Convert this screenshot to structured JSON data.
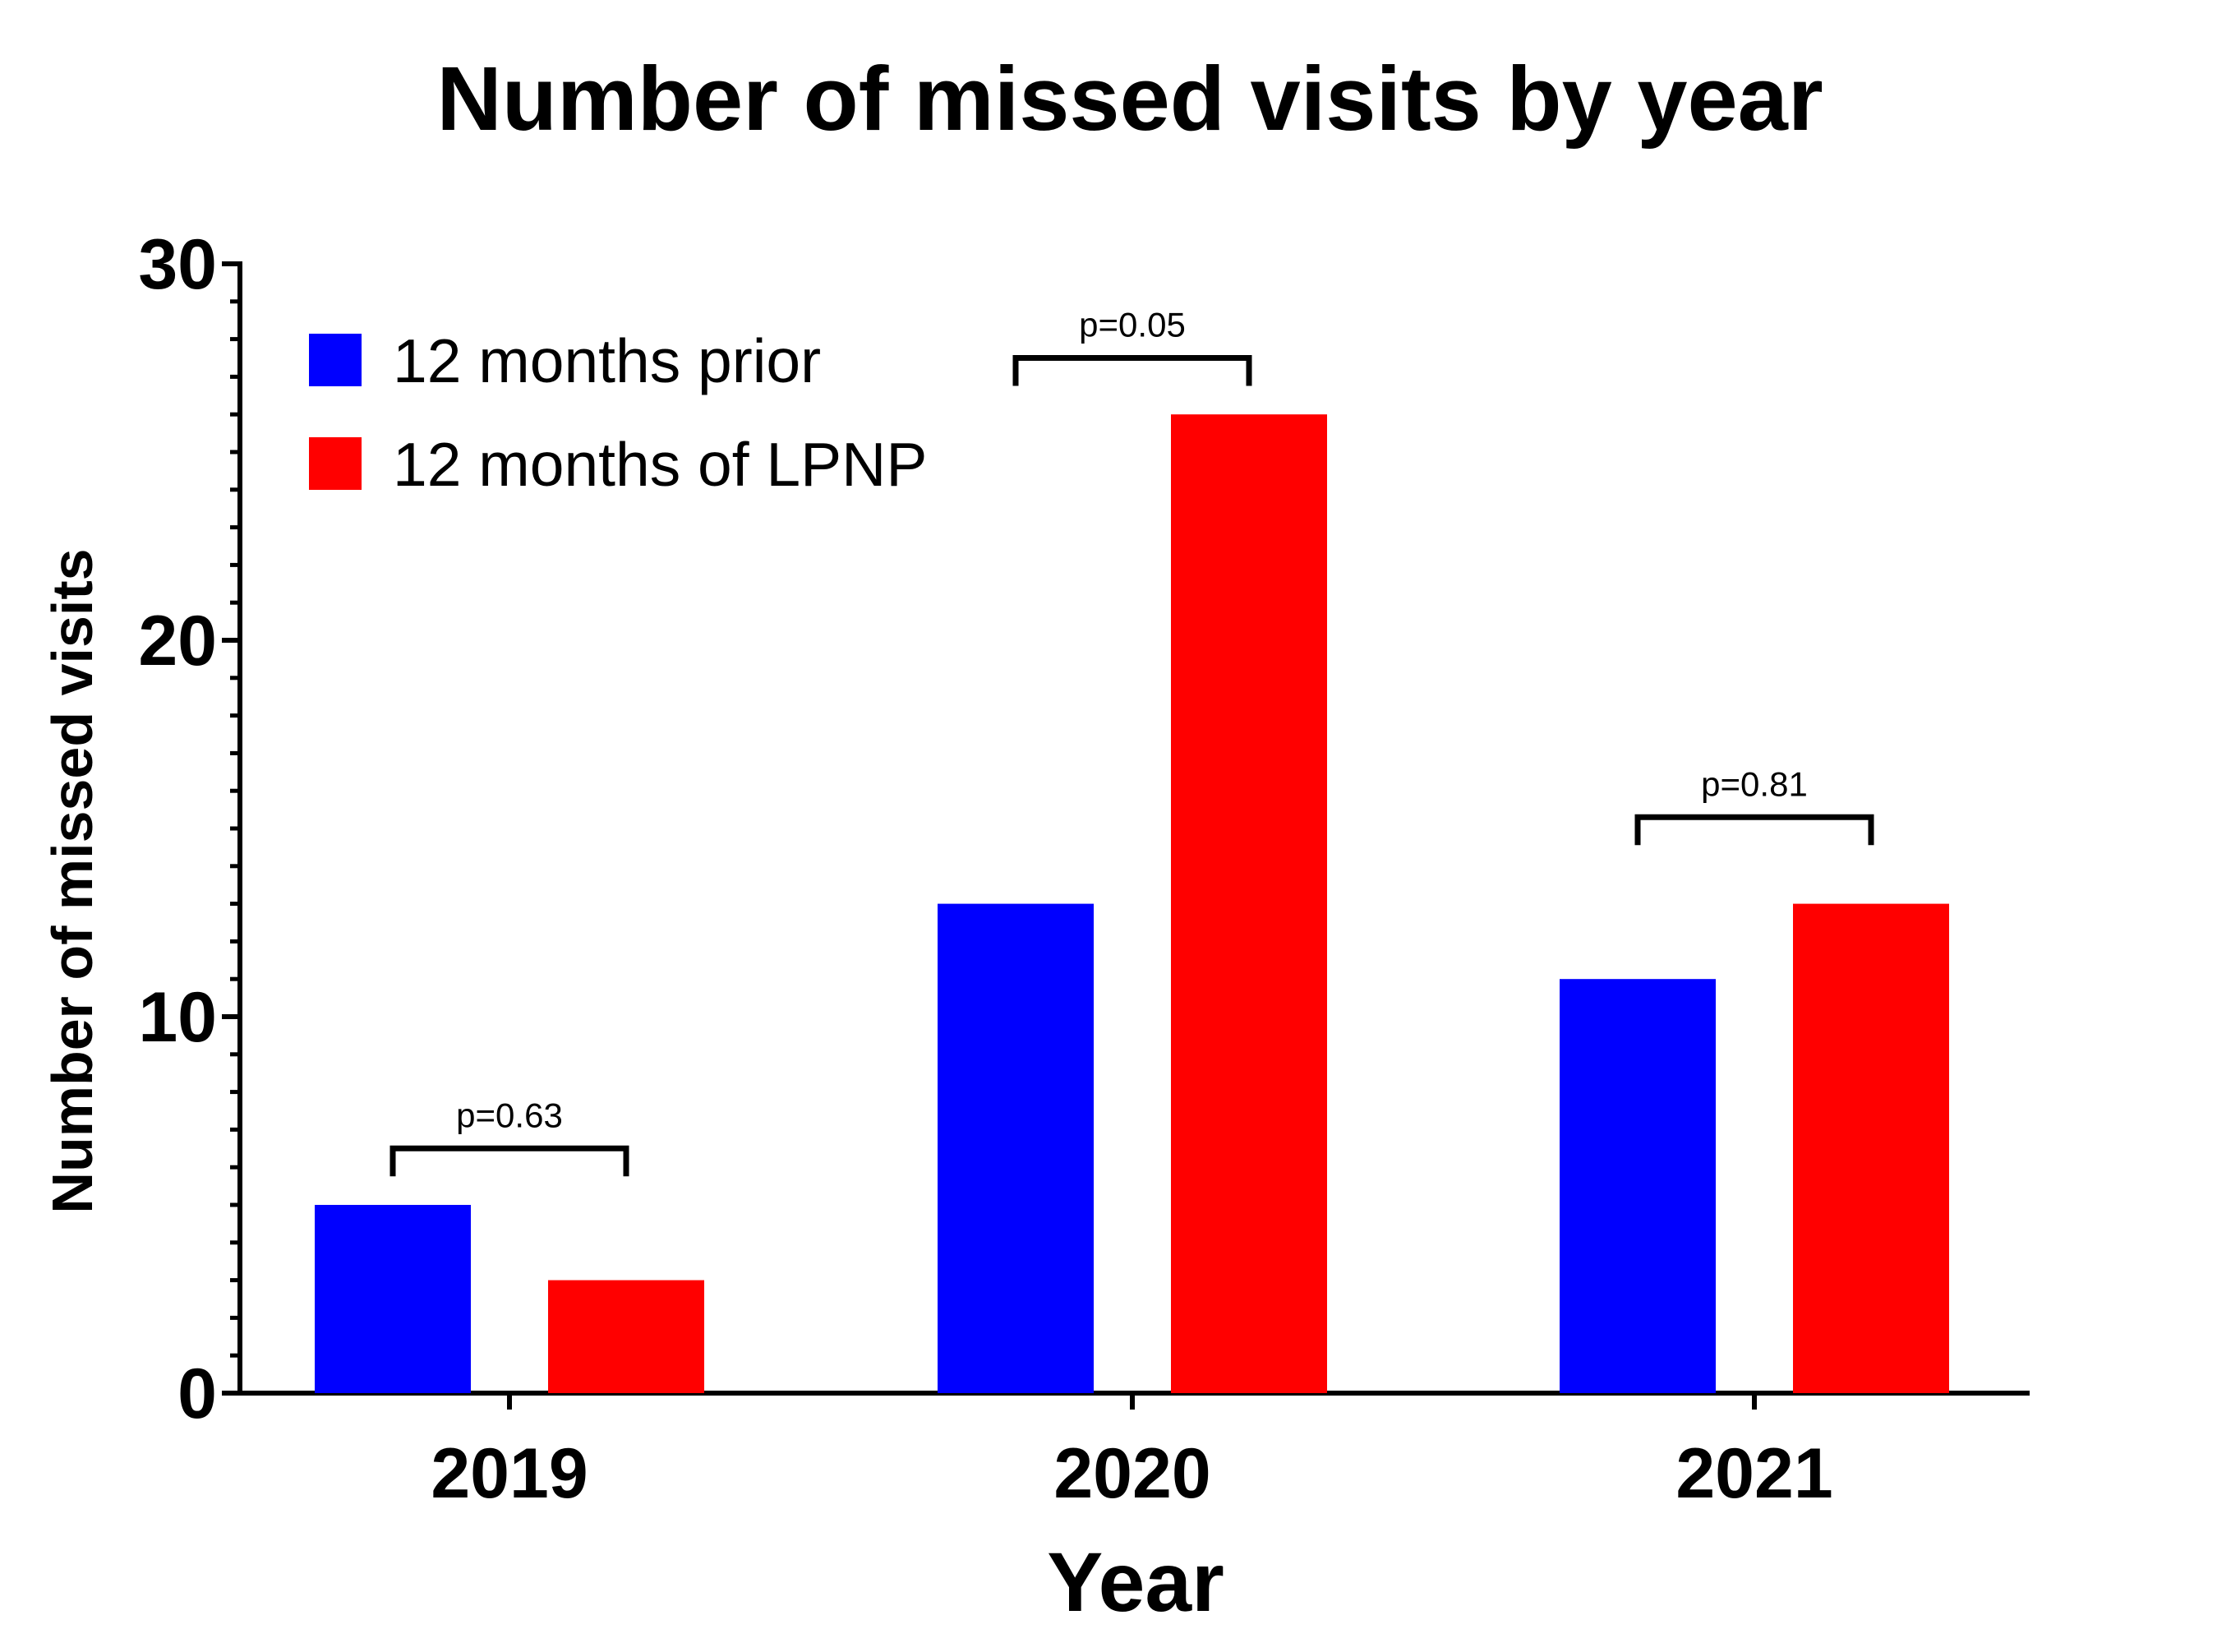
{
  "chart_data": {
    "type": "bar",
    "title": "Number of missed visits by year",
    "xlabel": "Year",
    "ylabel": "Number of missed visits",
    "categories": [
      "2019",
      "2020",
      "2021"
    ],
    "series": [
      {
        "name": "12 months prior",
        "values": [
          5,
          13,
          11
        ],
        "color": "#0000ff"
      },
      {
        "name": "12 months of LPNP",
        "values": [
          3,
          26,
          13
        ],
        "color": "#ff0000"
      }
    ],
    "ylim": [
      0,
      30
    ],
    "y_major_ticks": [
      0,
      10,
      20,
      30
    ],
    "y_minor_step": 1,
    "grid": false,
    "legend_position": "top-left",
    "annotations": [
      {
        "category": "2019",
        "text": "p=0.63",
        "bracket_at": 6.5
      },
      {
        "category": "2020",
        "text": "p=0.05",
        "bracket_at": 27.5
      },
      {
        "category": "2021",
        "text": "p=0.81",
        "bracket_at": 15.3
      }
    ]
  }
}
